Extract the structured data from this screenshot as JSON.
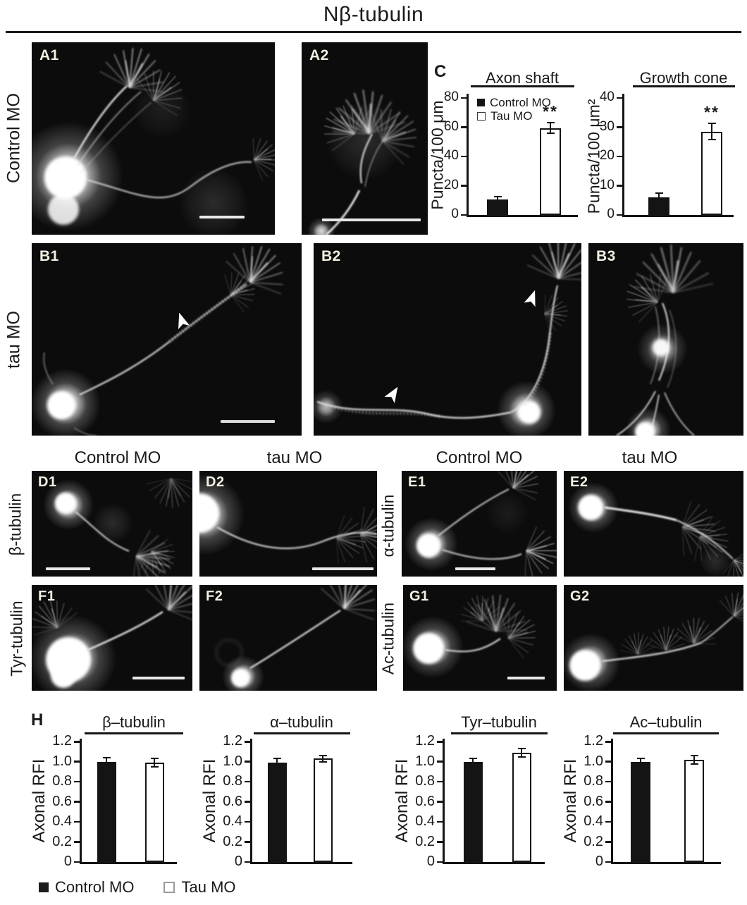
{
  "title": "Nβ-tubulin",
  "row_labels": {
    "A": "Control MO",
    "B": "tau MO"
  },
  "column_headers": {
    "d1": "Control MO",
    "d2": "tau MO",
    "e1": "Control MO",
    "e2": "tau MO"
  },
  "side_labels": {
    "D": "β-tubulin",
    "E": "α-tubulin",
    "F": "Tyr-tubulin",
    "G": "Ac-tubulin"
  },
  "section_labels": {
    "C": "C",
    "H": "H"
  },
  "panel_labels": {
    "A1": "A1",
    "A2": "A2",
    "B1": "B1",
    "B2": "B2",
    "B3": "B3",
    "D1": "D1",
    "D2": "D2",
    "E1": "E1",
    "E2": "E2",
    "F1": "F1",
    "F2": "F2",
    "G1": "G1",
    "G2": "G2"
  },
  "bottom_legend": {
    "control": "Control MO",
    "tau": "Tau MO"
  },
  "chart_data": [
    {
      "id": "axon_shaft",
      "type": "bar",
      "title": "Axon shaft",
      "ylabel": "Puncta/100 μm",
      "ylim": [
        0,
        80
      ],
      "yticks": [
        "0",
        "20",
        "40",
        "60",
        "80"
      ],
      "categories": [
        "Control MO",
        "Tau MO"
      ],
      "values": [
        10.5,
        59.5
      ],
      "errors": [
        2,
        3.5
      ],
      "significance": {
        "label": "**",
        "on": "Tau MO"
      },
      "legend": {
        "visible": true,
        "items": [
          "Control MO",
          "Tau MO"
        ]
      },
      "bar_colors": [
        "#141414",
        "#ffffff"
      ],
      "grid": false,
      "legend_position": "upper-left-inside"
    },
    {
      "id": "growth_cone",
      "type": "bar",
      "title": "Growth cone",
      "ylabel": "Puncta/100 μm²",
      "ylim": [
        0,
        40
      ],
      "yticks": [
        "0",
        "10",
        "20",
        "30",
        "40"
      ],
      "categories": [
        "Control MO",
        "Tau MO"
      ],
      "values": [
        6,
        28.5
      ],
      "errors": [
        1.5,
        2.8
      ],
      "significance": {
        "label": "**",
        "on": "Tau MO"
      },
      "legend": {
        "visible": false,
        "items": [
          "Control MO",
          "Tau MO"
        ]
      },
      "bar_colors": [
        "#141414",
        "#ffffff"
      ],
      "grid": false
    },
    {
      "id": "beta_tubulin",
      "type": "bar",
      "title": "β–tubulin",
      "ylabel": "Axonal RFI",
      "ylim": [
        0,
        1.2
      ],
      "yticks": [
        "0",
        "0.2",
        "0.4",
        "0.6",
        "0.8",
        "1.0",
        "1.2"
      ],
      "categories": [
        "Control MO",
        "Tau MO"
      ],
      "values": [
        1.0,
        0.99
      ],
      "errors": [
        0.04,
        0.04
      ],
      "bar_colors": [
        "#141414",
        "#ffffff"
      ],
      "grid": false
    },
    {
      "id": "alpha_tubulin",
      "type": "bar",
      "title": "α–tubulin",
      "ylabel": "Axonal RFI",
      "ylim": [
        0,
        1.2
      ],
      "yticks": [
        "0",
        "0.2",
        "0.4",
        "0.6",
        "0.8",
        "1.0",
        "1.2"
      ],
      "categories": [
        "Control MO",
        "Tau MO"
      ],
      "values": [
        0.99,
        1.03
      ],
      "errors": [
        0.04,
        0.03
      ],
      "bar_colors": [
        "#141414",
        "#ffffff"
      ],
      "grid": false
    },
    {
      "id": "tyr_tubulin",
      "type": "bar",
      "title": "Tyr–tubulin",
      "ylabel": "Axonal RFI",
      "ylim": [
        0,
        1.2
      ],
      "yticks": [
        "0",
        "0.2",
        "0.4",
        "0.6",
        "0.8",
        "1.0",
        "1.2"
      ],
      "categories": [
        "Control MO",
        "Tau MO"
      ],
      "values": [
        1.0,
        1.09
      ],
      "errors": [
        0.035,
        0.045
      ],
      "bar_colors": [
        "#141414",
        "#ffffff"
      ],
      "grid": false
    },
    {
      "id": "ac_tubulin",
      "type": "bar",
      "title": "Ac–tubulin",
      "ylabel": "Axonal RFI",
      "ylim": [
        0,
        1.2
      ],
      "yticks": [
        "0",
        "0.2",
        "0.4",
        "0.6",
        "0.8",
        "1.0",
        "1.2"
      ],
      "categories": [
        "Control MO",
        "Tau MO"
      ],
      "values": [
        1.0,
        1.02
      ],
      "errors": [
        0.035,
        0.04
      ],
      "bar_colors": [
        "#141414",
        "#ffffff"
      ],
      "grid": false
    }
  ]
}
